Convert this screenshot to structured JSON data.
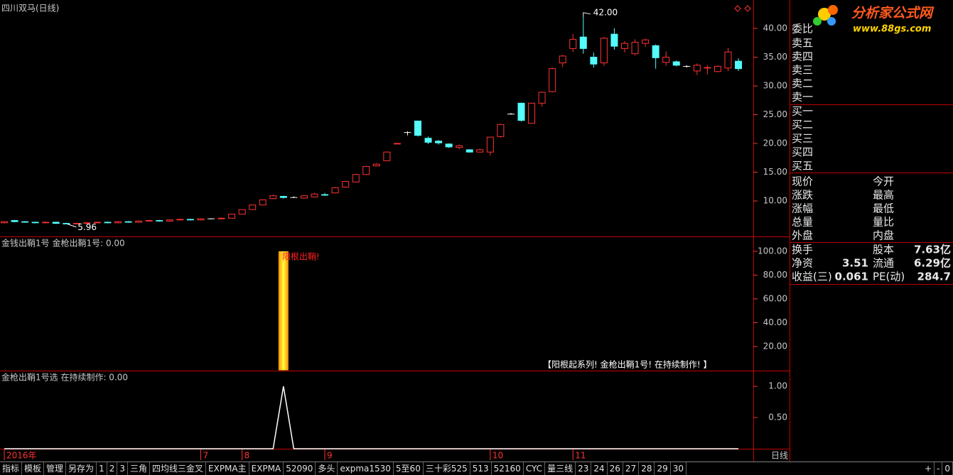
{
  "window": {
    "title": "四川双马(日线)",
    "period_button": "日线"
  },
  "logo": {
    "name": "分析家公式网",
    "url": "www.88gs.com"
  },
  "main_panel": {
    "ylim": [
      3.83,
      44.94
    ],
    "yticks": [
      {
        "value": 10,
        "label": "10.00"
      },
      {
        "value": 15,
        "label": "15.00"
      },
      {
        "value": 20,
        "label": "20.00"
      },
      {
        "value": 25,
        "label": "25.00"
      },
      {
        "value": 30,
        "label": "30.00"
      },
      {
        "value": 35,
        "label": "35.00"
      },
      {
        "value": 40,
        "label": "40.00"
      }
    ],
    "open": [
      6.2,
      6.6,
      6.4,
      6.3,
      6.2,
      6.3,
      6.1,
      6.0,
      6.1,
      6.2,
      6.3,
      6.2,
      6.4,
      6.3,
      6.5,
      6.6,
      6.5,
      6.7,
      6.8,
      6.7,
      6.9,
      6.9,
      7.0,
      7.7,
      8.5,
      9.3,
      10.4,
      10.8,
      10.6,
      10.5,
      10.7,
      11.1,
      11.4,
      12.4,
      13.3,
      14.6,
      16.1,
      17.0,
      19.9,
      21.9,
      23.9,
      20.9,
      20.4,
      19.9,
      19.3,
      18.9,
      18.5,
      18.5,
      21.2,
      25.1,
      27.0,
      23.5,
      27.0,
      29.0,
      34.0,
      36.5,
      38.5,
      35.0,
      34.0,
      39.0,
      36.5,
      35.6,
      37.4,
      37.0,
      34.1,
      34.2,
      33.4,
      32.6,
      33.1,
      32.5,
      33.1,
      34.3
    ],
    "close": [
      6.4,
      6.4,
      6.3,
      6.2,
      6.3,
      6.1,
      6.0,
      6.1,
      6.2,
      6.3,
      6.2,
      6.4,
      6.3,
      6.5,
      6.6,
      6.5,
      6.7,
      6.8,
      6.7,
      6.9,
      6.9,
      7.0,
      7.7,
      8.5,
      9.3,
      10.2,
      10.9,
      10.6,
      10.6,
      10.9,
      11.2,
      11.0,
      12.3,
      13.4,
      14.6,
      16.0,
      16.4,
      18.5,
      20.0,
      21.9,
      21.4,
      20.2,
      20.1,
      19.4,
      19.6,
      18.5,
      18.9,
      21.1,
      23.3,
      25.1,
      24.0,
      27.0,
      28.9,
      33.0,
      35.2,
      38.1,
      36.5,
      33.8,
      38.3,
      36.9,
      37.4,
      37.6,
      38.0,
      34.9,
      35.0,
      33.6,
      33.4,
      33.6,
      33.2,
      33.4,
      35.9,
      33.0
    ],
    "high": [
      6.5,
      6.7,
      6.5,
      6.4,
      6.4,
      6.4,
      6.2,
      6.2,
      6.3,
      6.4,
      6.4,
      6.5,
      6.5,
      6.6,
      6.7,
      6.7,
      6.8,
      6.9,
      6.9,
      7.0,
      7.0,
      7.1,
      7.7,
      8.5,
      9.3,
      10.2,
      11.1,
      10.9,
      10.8,
      11.0,
      11.4,
      11.4,
      12.4,
      13.5,
      14.7,
      16.1,
      16.6,
      18.6,
      20.1,
      22.1,
      23.9,
      21.2,
      20.6,
      20.0,
      19.8,
      19.0,
      19.1,
      21.1,
      23.4,
      25.3,
      27.1,
      27.1,
      29.0,
      33.2,
      35.4,
      39.0,
      42.0,
      35.8,
      38.5,
      40.0,
      37.8,
      38.1,
      38.2,
      37.2,
      36.0,
      34.4,
      33.6,
      33.9,
      33.6,
      33.6,
      36.6,
      34.8
    ],
    "low": [
      6.1,
      6.3,
      6.2,
      6.1,
      6.1,
      6.0,
      5.96,
      5.96,
      6.0,
      6.1,
      6.1,
      6.1,
      6.2,
      6.2,
      6.4,
      6.4,
      6.4,
      6.6,
      6.6,
      6.6,
      6.8,
      6.8,
      7.0,
      7.7,
      8.5,
      9.3,
      10.3,
      10.4,
      10.5,
      10.4,
      10.6,
      10.9,
      11.3,
      12.3,
      13.2,
      14.5,
      16.0,
      16.9,
      19.9,
      21.4,
      21.2,
      19.9,
      19.8,
      19.2,
      19.0,
      18.4,
      18.4,
      17.9,
      21.0,
      25.0,
      23.8,
      23.4,
      26.4,
      28.9,
      33.3,
      35.9,
      35.6,
      33.2,
      33.5,
      36.3,
      35.8,
      35.3,
      36.8,
      33.0,
      33.5,
      33.4,
      33.2,
      31.9,
      32.0,
      32.4,
      32.6,
      32.6
    ],
    "high_marker": {
      "value": 42,
      "label": "42.00"
    },
    "low_marker": {
      "value": 5.96,
      "label": "5.96"
    }
  },
  "indicator_panel": {
    "title": "金钱出鞘1号 金枪出鞘1号: 0.00",
    "ylim": [
      0,
      111.9
    ],
    "yticks": [
      {
        "value": 20,
        "label": "20.00"
      },
      {
        "value": 40,
        "label": "40.00"
      },
      {
        "value": 60,
        "label": "60.00"
      },
      {
        "value": 80,
        "label": "80.00"
      },
      {
        "value": 100,
        "label": "100.00"
      }
    ],
    "values": [
      0,
      0,
      0,
      0,
      0,
      0,
      0,
      0,
      0,
      0,
      0,
      0,
      0,
      0,
      0,
      0,
      0,
      0,
      0,
      0,
      0,
      0,
      0,
      0,
      0,
      0,
      0,
      100,
      0,
      0,
      0,
      0,
      0,
      0,
      0,
      0,
      0,
      0,
      0,
      0,
      0,
      0,
      0,
      0,
      0,
      0,
      0,
      0,
      0,
      0,
      0,
      0,
      0,
      0,
      0,
      0,
      0,
      0,
      0,
      0,
      0,
      0,
      0,
      0,
      0,
      0,
      0,
      0,
      0,
      0,
      0,
      0
    ],
    "signal_label": "阳根出鞘!",
    "note": "【阳根起系列! 金枪出鞘1号! 在持续制作! 】"
  },
  "signal_panel": {
    "title": "金枪出鞘1号选 在持续制作: 0.00",
    "ylim": [
      0,
      1.24
    ],
    "yticks": [
      {
        "value": 0.5,
        "label": "0.50"
      },
      {
        "value": 1,
        "label": "1.00"
      }
    ],
    "values": [
      0,
      0,
      0,
      0,
      0,
      0,
      0,
      0,
      0,
      0,
      0,
      0,
      0,
      0,
      0,
      0,
      0,
      0,
      0,
      0,
      0,
      0,
      0,
      0,
      0,
      0,
      0,
      1,
      0,
      0,
      0,
      0,
      0,
      0,
      0,
      0,
      0,
      0,
      0,
      0,
      0,
      0,
      0,
      0,
      0,
      0,
      0,
      0,
      0,
      0,
      0,
      0,
      0,
      0,
      0,
      0,
      0,
      0,
      0,
      0,
      0,
      0,
      0,
      0,
      0,
      0,
      0,
      0,
      0,
      0,
      0,
      0
    ]
  },
  "x_axis": {
    "labels": [
      "2016年",
      null,
      null,
      null,
      null,
      null,
      null,
      null,
      null,
      null,
      null,
      null,
      null,
      null,
      null,
      null,
      null,
      null,
      null,
      "7",
      null,
      null,
      null,
      "8",
      null,
      null,
      null,
      null,
      null,
      null,
      null,
      "9",
      null,
      null,
      null,
      null,
      null,
      null,
      null,
      null,
      null,
      null,
      null,
      null,
      null,
      null,
      null,
      "10",
      null,
      null,
      null,
      null,
      null,
      null,
      null,
      "11",
      null,
      null,
      null,
      null,
      null,
      null,
      null,
      null,
      null,
      null,
      null,
      null,
      null,
      null,
      null,
      null
    ]
  },
  "order_book": {
    "ratio_label": "委比",
    "asks": [
      "卖五",
      "卖四",
      "卖三",
      "卖二",
      "卖一"
    ],
    "bids": [
      "买一",
      "买二",
      "买三",
      "买四",
      "买五"
    ]
  },
  "quote": {
    "rows": [
      [
        "现价",
        "今开"
      ],
      [
        "涨跌",
        "最高"
      ],
      [
        "涨幅",
        "最低"
      ],
      [
        "总量",
        "量比"
      ],
      [
        "外盘",
        "内盘"
      ]
    ]
  },
  "fundamentals": {
    "rows": [
      {
        "label": "换手",
        "label2": "股本",
        "value2": "7.63亿"
      },
      {
        "label": "净资",
        "value": 3.51,
        "label2": "流通",
        "value2": "6.29亿"
      },
      {
        "label": "收益(三)",
        "value": 0.061,
        "label2": "PE(动)",
        "value2": 284.7
      }
    ]
  },
  "toolbar": {
    "buttons": [
      "指标",
      "模板",
      "管理",
      "另存为",
      "1",
      "2",
      "3",
      "三角",
      "四均线三金叉",
      "EXPMA主",
      "EXPMA",
      "52090",
      "多头",
      "expma1530",
      "5至60",
      "三十彩525",
      "513",
      "52160",
      "CYC",
      "量三线",
      "23",
      "24",
      "26",
      "27",
      "28",
      "29",
      "30"
    ],
    "zoom": [
      "+",
      "-",
      "0"
    ]
  }
}
